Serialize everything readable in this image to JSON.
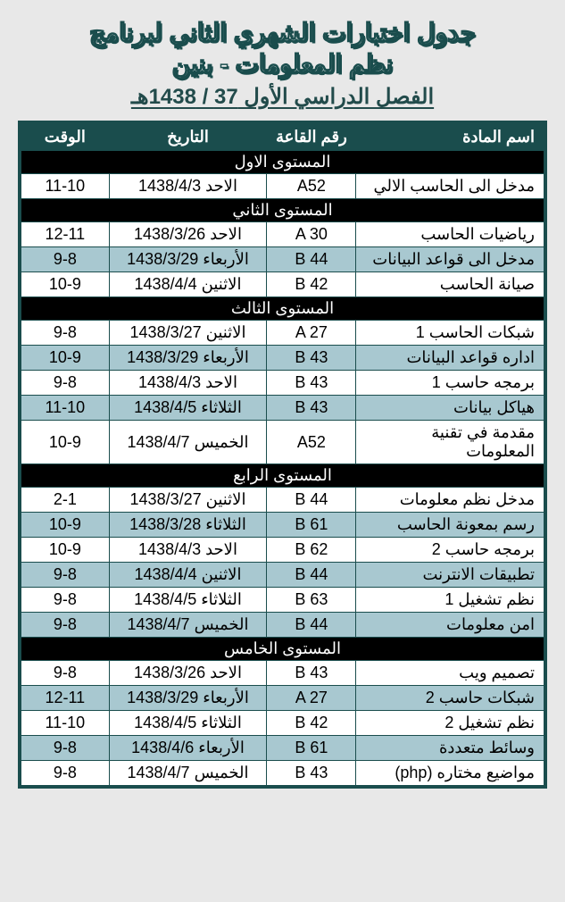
{
  "header": {
    "title_main": "جدول اختبارات الشهري الثاني لبرنامج",
    "title_sub": "نظم المعلومات - بنين",
    "semester": "الفصل الدراسي الأول 37 / 1438هـ"
  },
  "table": {
    "columns": {
      "subject": "اسم المادة",
      "room": "رقم القاعة",
      "date": "التاريخ",
      "time": "الوقت"
    },
    "sections": [
      {
        "title": "المستوى الاول",
        "rows": [
          {
            "subject": "مدخل الى الحاسب الالي",
            "room": "A52",
            "date": "الاحد 1438/4/3",
            "time": "11-10",
            "alt": false
          }
        ]
      },
      {
        "title": "المستوى الثاني",
        "rows": [
          {
            "subject": "رياضيات الحاسب",
            "room": "A 30",
            "date": "الاحد 1438/3/26",
            "time": "12-11",
            "alt": false
          },
          {
            "subject": "مدخل الى قواعد البيانات",
            "room": "B 44",
            "date": "الأربعاء 1438/3/29",
            "time": "9-8",
            "alt": true
          },
          {
            "subject": "صيانة الحاسب",
            "room": "B 42",
            "date": "الاثنين 1438/4/4",
            "time": "10-9",
            "alt": false
          }
        ]
      },
      {
        "title": "المستوى الثالث",
        "rows": [
          {
            "subject": "شبكات الحاسب 1",
            "room": "A 27",
            "date": "الاثنين 1438/3/27",
            "time": "9-8",
            "alt": false
          },
          {
            "subject": "اداره قواعد البيانات",
            "room": "B 43",
            "date": "الأربعاء 1438/3/29",
            "time": "10-9",
            "alt": true
          },
          {
            "subject": "برمجه حاسب 1",
            "room": "B 43",
            "date": "الاحد 1438/4/3",
            "time": "9-8",
            "alt": false
          },
          {
            "subject": "هياكل بيانات",
            "room": "B 43",
            "date": "الثلاثاء 1438/4/5",
            "time": "11-10",
            "alt": true
          },
          {
            "subject": "مقدمة في تقنية المعلومات",
            "room": "A52",
            "date": "الخميس 1438/4/7",
            "time": "10-9",
            "alt": false
          }
        ]
      },
      {
        "title": "المستوى الرابع",
        "rows": [
          {
            "subject": "مدخل نظم معلومات",
            "room": "B 44",
            "date": "الاثنين 1438/3/27",
            "time": "2-1",
            "alt": false
          },
          {
            "subject": "رسم بمعونة الحاسب",
            "room": "B 61",
            "date": "الثلاثاء 1438/3/28",
            "time": "10-9",
            "alt": true
          },
          {
            "subject": "برمجه حاسب 2",
            "room": "B 62",
            "date": "الاحد 1438/4/3",
            "time": "10-9",
            "alt": false
          },
          {
            "subject": "تطبيقات الانترنت",
            "room": "B 44",
            "date": "الاثنين 1438/4/4",
            "time": "9-8",
            "alt": true
          },
          {
            "subject": "نظم تشغيل 1",
            "room": "B 63",
            "date": "الثلاثاء 1438/4/5",
            "time": "9-8",
            "alt": false
          },
          {
            "subject": "امن معلومات",
            "room": "B 44",
            "date": "الخميس 1438/4/7",
            "time": "9-8",
            "alt": true
          }
        ]
      },
      {
        "title": "المستوى الخامس",
        "rows": [
          {
            "subject": "تصميم ويب",
            "room": "B 43",
            "date": "الاحد 1438/3/26",
            "time": "9-8",
            "alt": false
          },
          {
            "subject": "شبكات حاسب 2",
            "room": "A 27",
            "date": "الأربعاء 1438/3/29",
            "time": "12-11",
            "alt": true
          },
          {
            "subject": "نظم تشغيل 2",
            "room": "B 42",
            "date": "الثلاثاء 1438/4/5",
            "time": "11-10",
            "alt": false
          },
          {
            "subject": "وسائط متعددة",
            "room": "B 61",
            "date": "الأربعاء 1438/4/6",
            "time": "9-8",
            "alt": true
          },
          {
            "subject": "مواضيع مختاره (php)",
            "room": "B 43",
            "date": "الخميس 1438/4/7",
            "time": "9-8",
            "alt": false
          }
        ]
      }
    ]
  }
}
